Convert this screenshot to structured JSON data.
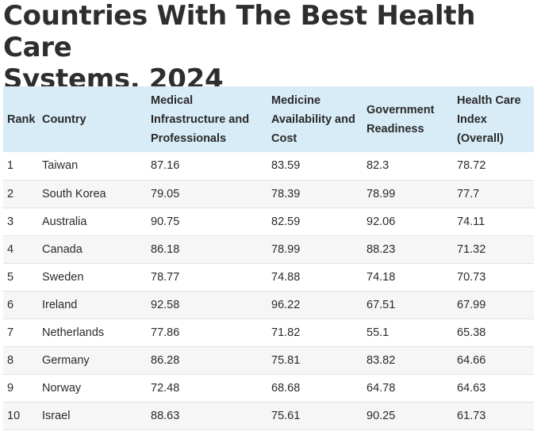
{
  "title": {
    "line1": "Countries With The Best Health Care",
    "line2": "Systems, 2024"
  },
  "table": {
    "headers": {
      "rank": "Rank",
      "country": "Country",
      "infrastructure": [
        "Medical",
        "Infrastructure and",
        "Professionals"
      ],
      "medicine": [
        "Medicine",
        "Availability and",
        "Cost"
      ],
      "government": [
        "Government",
        "Readiness"
      ],
      "index": [
        "Health Care",
        "Index",
        "(Overall)"
      ]
    },
    "rows": [
      [
        "1",
        "Taiwan",
        "87.16",
        "83.59",
        "82.3",
        "78.72"
      ],
      [
        "2",
        "South Korea",
        "79.05",
        "78.39",
        "78.99",
        "77.7"
      ],
      [
        "3",
        "Australia",
        "90.75",
        "82.59",
        "92.06",
        "74.11"
      ],
      [
        "4",
        "Canada",
        "86.18",
        "78.99",
        "88.23",
        "71.32"
      ],
      [
        "5",
        "Sweden",
        "78.77",
        "74.88",
        "74.18",
        "70.73"
      ],
      [
        "6",
        "Ireland",
        "92.58",
        "96.22",
        "67.51",
        "67.99"
      ],
      [
        "7",
        "Netherlands",
        "77.86",
        "71.82",
        "55.1",
        "65.38"
      ],
      [
        "8",
        "Germany",
        "86.28",
        "75.81",
        "83.82",
        "64.66"
      ],
      [
        "9",
        "Norway",
        "72.48",
        "68.68",
        "64.78",
        "64.63"
      ],
      [
        "10",
        "Israel",
        "88.63",
        "75.61",
        "90.25",
        "61.73"
      ]
    ]
  },
  "colors": {
    "header_background": "#d8ecf7",
    "stripe_background": "#f6f6f6",
    "text": "#2a2a2a"
  }
}
